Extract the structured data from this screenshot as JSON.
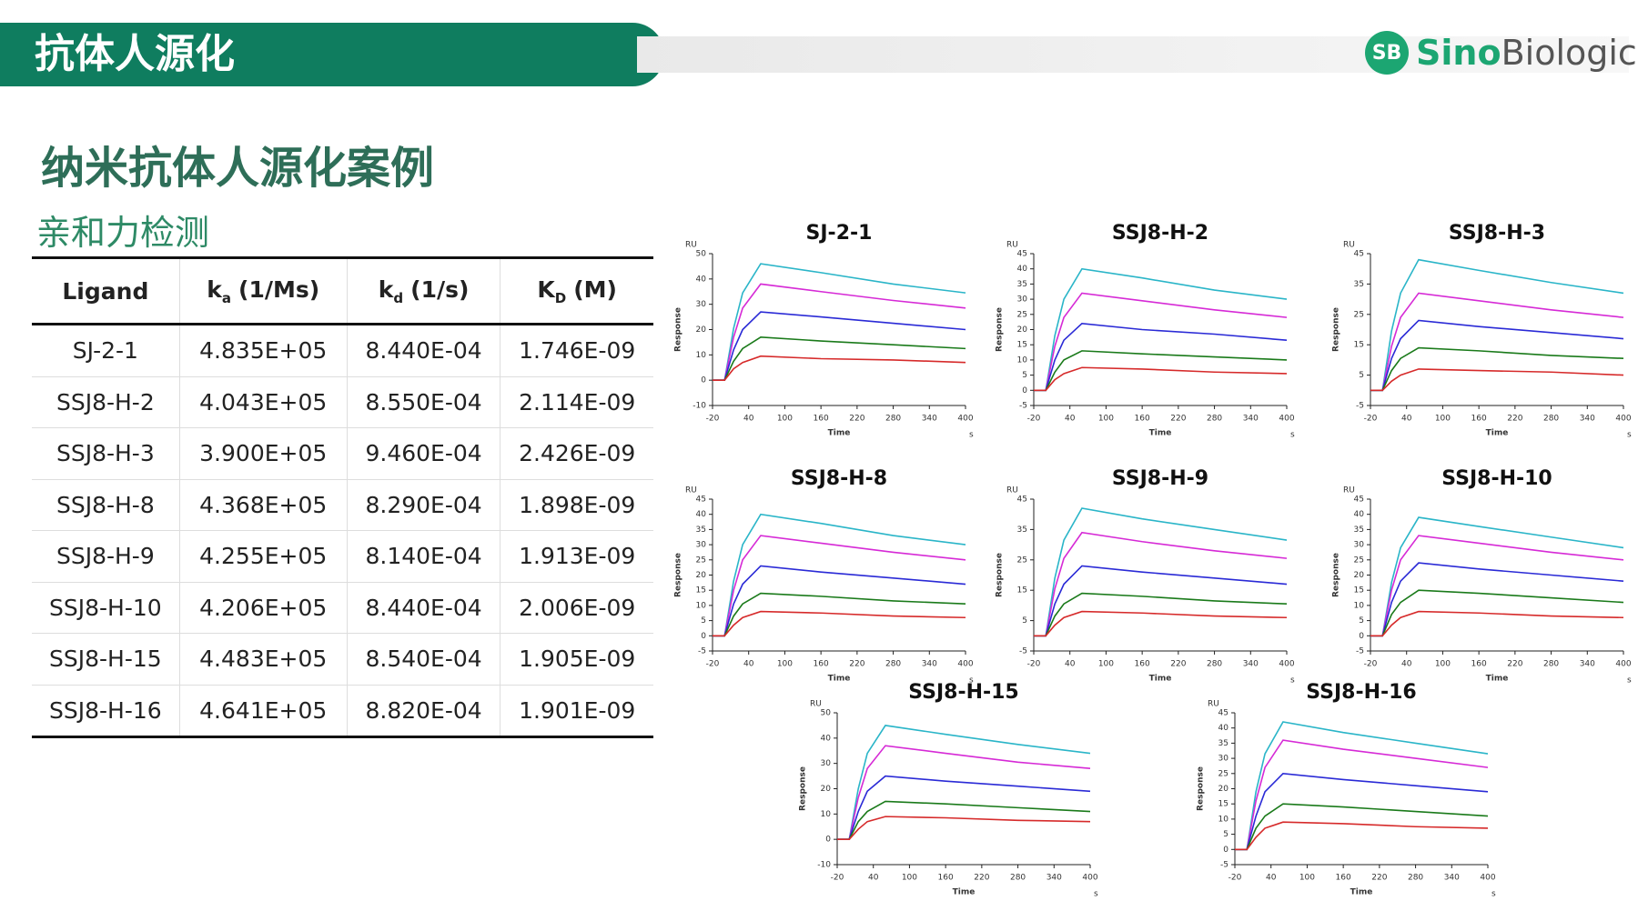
{
  "header": {
    "title": "抗体人源化"
  },
  "logo": {
    "mark": "SB",
    "left": "Sino",
    "right": "Biological"
  },
  "title": "纳米抗体人源化案例",
  "subtitle": "亲和力检测",
  "table": {
    "columns": [
      {
        "text": "Ligand"
      },
      {
        "text": "k",
        "sub": "a",
        "unit": "(1/Ms)"
      },
      {
        "text": "k",
        "sub": "d",
        "unit": "(1/s)"
      },
      {
        "text": "K",
        "sub": "D",
        "unit": "(M)"
      }
    ],
    "rows": [
      [
        "SJ-2-1",
        "4.835E+05",
        "8.440E-04",
        "1.746E-09"
      ],
      [
        "SSJ8-H-2",
        "4.043E+05",
        "8.550E-04",
        "2.114E-09"
      ],
      [
        "SSJ8-H-3",
        "3.900E+05",
        "9.460E-04",
        "2.426E-09"
      ],
      [
        "SSJ8-H-8",
        "4.368E+05",
        "8.290E-04",
        "1.898E-09"
      ],
      [
        "SSJ8-H-9",
        "4.255E+05",
        "8.140E-04",
        "1.913E-09"
      ],
      [
        "SSJ8-H-10",
        "4.206E+05",
        "8.440E-04",
        "2.006E-09"
      ],
      [
        "SSJ8-H-15",
        "4.483E+05",
        "8.540E-04",
        "1.905E-09"
      ],
      [
        "SSJ8-H-16",
        "4.641E+05",
        "8.820E-04",
        "1.901E-09"
      ]
    ]
  },
  "chart_data": [
    {
      "type": "line",
      "title": "SJ-2-1",
      "y_unit": "RU",
      "y_label": "Response",
      "x_label": "Time",
      "x_unit": "s",
      "xlim": [
        -20,
        400
      ],
      "xticks": [
        -20,
        40,
        100,
        160,
        220,
        280,
        340,
        400
      ],
      "ylim": [
        -10,
        50
      ],
      "yticks": [
        -10,
        0,
        10,
        20,
        30,
        40,
        50
      ],
      "x": [
        -20,
        0,
        15,
        30,
        60,
        160,
        280,
        400
      ],
      "series": [
        {
          "color": "#2ab5c8",
          "values": [
            0,
            0,
            20.5,
            34.5,
            46,
            42.5,
            38,
            34.5
          ]
        },
        {
          "color": "#d62ad6",
          "values": [
            0,
            0,
            17,
            28.5,
            38,
            35,
            31.5,
            28.5
          ]
        },
        {
          "color": "#2a2ad6",
          "values": [
            0,
            0,
            12,
            20,
            27,
            25,
            22.5,
            20
          ]
        },
        {
          "color": "#1a7a1a",
          "values": [
            0,
            0,
            7.5,
            12.5,
            17,
            15.5,
            14,
            12.5
          ]
        },
        {
          "color": "#d62a2a",
          "values": [
            0,
            0,
            4.5,
            7,
            9.5,
            8.5,
            8,
            7
          ]
        }
      ]
    },
    {
      "type": "line",
      "title": "SSJ8-H-2",
      "y_unit": "RU",
      "y_label": "Response",
      "x_label": "Time",
      "x_unit": "s",
      "xlim": [
        -20,
        400
      ],
      "xticks": [
        -20,
        40,
        100,
        160,
        220,
        280,
        340,
        400
      ],
      "ylim": [
        -5,
        45
      ],
      "yticks": [
        -5,
        0,
        5,
        10,
        15,
        20,
        25,
        30,
        35,
        40,
        45
      ],
      "x": [
        -20,
        0,
        15,
        30,
        60,
        160,
        280,
        400
      ],
      "series": [
        {
          "color": "#2ab5c8",
          "values": [
            0,
            0,
            18,
            30,
            40,
            37,
            33,
            30
          ]
        },
        {
          "color": "#d62ad6",
          "values": [
            0,
            0,
            14.5,
            24,
            32,
            29.5,
            26.5,
            24
          ]
        },
        {
          "color": "#2a2ad6",
          "values": [
            0,
            0,
            10,
            16.5,
            22,
            20,
            18.5,
            16.5
          ]
        },
        {
          "color": "#1a7a1a",
          "values": [
            0,
            0,
            6,
            10,
            13,
            12,
            11,
            10
          ]
        },
        {
          "color": "#d62a2a",
          "values": [
            0,
            0,
            3.5,
            5.5,
            7.5,
            7,
            6,
            5.5
          ]
        }
      ]
    },
    {
      "type": "line",
      "title": "SSJ8-H-3",
      "y_unit": "RU",
      "y_label": "Response",
      "x_label": "Time",
      "x_unit": "s",
      "xlim": [
        -20,
        400
      ],
      "xticks": [
        -20,
        40,
        100,
        160,
        220,
        280,
        340,
        400
      ],
      "ylim": [
        -5,
        45
      ],
      "yticks": [
        -5,
        5,
        15,
        25,
        35,
        45
      ],
      "x": [
        -20,
        0,
        15,
        30,
        60,
        160,
        280,
        400
      ],
      "series": [
        {
          "color": "#2ab5c8",
          "values": [
            0,
            0,
            19.5,
            32,
            43,
            39.5,
            35.5,
            32
          ]
        },
        {
          "color": "#d62ad6",
          "values": [
            0,
            0,
            14.5,
            24,
            32,
            29.5,
            26.5,
            24
          ]
        },
        {
          "color": "#2a2ad6",
          "values": [
            0,
            0,
            10.5,
            17,
            23,
            21,
            19,
            17
          ]
        },
        {
          "color": "#1a7a1a",
          "values": [
            0,
            0,
            6.5,
            10.5,
            14,
            13,
            11.5,
            10.5
          ]
        },
        {
          "color": "#d62a2a",
          "values": [
            0,
            0,
            3,
            5,
            7,
            6.5,
            6,
            5
          ]
        }
      ]
    },
    {
      "type": "line",
      "title": "SSJ8-H-8",
      "y_unit": "RU",
      "y_label": "Response",
      "x_label": "Time",
      "x_unit": "s",
      "xlim": [
        -20,
        400
      ],
      "xticks": [
        -20,
        40,
        100,
        160,
        220,
        280,
        340,
        400
      ],
      "ylim": [
        -5,
        45
      ],
      "yticks": [
        -5,
        0,
        5,
        10,
        15,
        20,
        25,
        30,
        35,
        40,
        45
      ],
      "x": [
        -20,
        0,
        15,
        30,
        60,
        160,
        280,
        400
      ],
      "series": [
        {
          "color": "#2ab5c8",
          "values": [
            0,
            0,
            18,
            30,
            40,
            37,
            33,
            30
          ]
        },
        {
          "color": "#d62ad6",
          "values": [
            0,
            0,
            15,
            25,
            33,
            30.5,
            27.5,
            25
          ]
        },
        {
          "color": "#2a2ad6",
          "values": [
            0,
            0,
            10.5,
            17,
            23,
            21,
            19,
            17
          ]
        },
        {
          "color": "#1a7a1a",
          "values": [
            0,
            0,
            6.5,
            10.5,
            14,
            13,
            11.5,
            10.5
          ]
        },
        {
          "color": "#d62a2a",
          "values": [
            0,
            0,
            3.5,
            6,
            8,
            7.5,
            6.5,
            6
          ]
        }
      ]
    },
    {
      "type": "line",
      "title": "SSJ8-H-9",
      "y_unit": "RU",
      "y_label": "Response",
      "x_label": "Time",
      "x_unit": "s",
      "xlim": [
        -20,
        400
      ],
      "xticks": [
        -20,
        40,
        100,
        160,
        220,
        280,
        340,
        400
      ],
      "ylim": [
        -5,
        45
      ],
      "yticks": [
        -5,
        5,
        15,
        25,
        35,
        45
      ],
      "x": [
        -20,
        0,
        15,
        30,
        60,
        160,
        280,
        400
      ],
      "series": [
        {
          "color": "#2ab5c8",
          "values": [
            0,
            0,
            19,
            31.5,
            42,
            38.5,
            35,
            31.5
          ]
        },
        {
          "color": "#d62ad6",
          "values": [
            0,
            0,
            15.5,
            25.5,
            34,
            31,
            28,
            25.5
          ]
        },
        {
          "color": "#2a2ad6",
          "values": [
            0,
            0,
            10.5,
            17,
            23,
            21,
            19,
            17
          ]
        },
        {
          "color": "#1a7a1a",
          "values": [
            0,
            0,
            6.5,
            10.5,
            14,
            13,
            11.5,
            10.5
          ]
        },
        {
          "color": "#d62a2a",
          "values": [
            0,
            0,
            3.5,
            6,
            8,
            7.5,
            6.5,
            6
          ]
        }
      ]
    },
    {
      "type": "line",
      "title": "SSJ8-H-10",
      "y_unit": "RU",
      "y_label": "Response",
      "x_label": "Time",
      "x_unit": "s",
      "xlim": [
        -20,
        400
      ],
      "xticks": [
        -20,
        40,
        100,
        160,
        220,
        280,
        340,
        400
      ],
      "ylim": [
        -5,
        45
      ],
      "yticks": [
        -5,
        0,
        5,
        10,
        15,
        20,
        25,
        30,
        35,
        40,
        45
      ],
      "x": [
        -20,
        0,
        15,
        30,
        60,
        160,
        280,
        400
      ],
      "series": [
        {
          "color": "#2ab5c8",
          "values": [
            0,
            0,
            17.5,
            29,
            39,
            36,
            32.5,
            29
          ]
        },
        {
          "color": "#d62ad6",
          "values": [
            0,
            0,
            15,
            25,
            33,
            30.5,
            27.5,
            25
          ]
        },
        {
          "color": "#2a2ad6",
          "values": [
            0,
            0,
            11,
            18,
            24,
            22,
            20,
            18
          ]
        },
        {
          "color": "#1a7a1a",
          "values": [
            0,
            0,
            7,
            11,
            15,
            14,
            12.5,
            11
          ]
        },
        {
          "color": "#d62a2a",
          "values": [
            0,
            0,
            3.5,
            6,
            8,
            7.5,
            6.5,
            6
          ]
        }
      ]
    },
    {
      "type": "line",
      "title": "SSJ8-H-15",
      "y_unit": "RU",
      "y_label": "Response",
      "x_label": "Time",
      "x_unit": "s",
      "xlim": [
        -20,
        400
      ],
      "xticks": [
        -20,
        40,
        100,
        160,
        220,
        280,
        340,
        400
      ],
      "ylim": [
        -10,
        50
      ],
      "yticks": [
        -10,
        0,
        10,
        20,
        30,
        40,
        50
      ],
      "x": [
        -20,
        0,
        15,
        30,
        60,
        160,
        280,
        400
      ],
      "series": [
        {
          "color": "#2ab5c8",
          "values": [
            0,
            0,
            20,
            34,
            45,
            41.5,
            37.5,
            34
          ]
        },
        {
          "color": "#d62ad6",
          "values": [
            0,
            0,
            16.5,
            28,
            37,
            34,
            30.5,
            28
          ]
        },
        {
          "color": "#2a2ad6",
          "values": [
            0,
            0,
            11,
            19,
            25,
            23,
            21,
            19
          ]
        },
        {
          "color": "#1a7a1a",
          "values": [
            0,
            0,
            7,
            11,
            15,
            14,
            12.5,
            11
          ]
        },
        {
          "color": "#d62a2a",
          "values": [
            0,
            0,
            4,
            7,
            9,
            8.5,
            7.5,
            7
          ]
        }
      ]
    },
    {
      "type": "line",
      "title": "SSJ8-H-16",
      "y_unit": "RU",
      "y_label": "Response",
      "x_label": "Time",
      "x_unit": "s",
      "xlim": [
        -20,
        400
      ],
      "xticks": [
        -20,
        40,
        100,
        160,
        220,
        280,
        340,
        400
      ],
      "ylim": [
        -5,
        45
      ],
      "yticks": [
        -5,
        0,
        5,
        10,
        15,
        20,
        25,
        30,
        35,
        40,
        45
      ],
      "x": [
        -20,
        0,
        15,
        30,
        60,
        160,
        280,
        400
      ],
      "series": [
        {
          "color": "#2ab5c8",
          "values": [
            0,
            0,
            19,
            31.5,
            42,
            38.5,
            35,
            31.5
          ]
        },
        {
          "color": "#d62ad6",
          "values": [
            0,
            0,
            16,
            27,
            36,
            33,
            30,
            27
          ]
        },
        {
          "color": "#2a2ad6",
          "values": [
            0,
            0,
            11,
            19,
            25,
            23,
            21,
            19
          ]
        },
        {
          "color": "#1a7a1a",
          "values": [
            0,
            0,
            7,
            11,
            15,
            14,
            12.5,
            11
          ]
        },
        {
          "color": "#d62a2a",
          "values": [
            0,
            0,
            4,
            7,
            9,
            8.5,
            7.5,
            7
          ]
        }
      ]
    }
  ]
}
